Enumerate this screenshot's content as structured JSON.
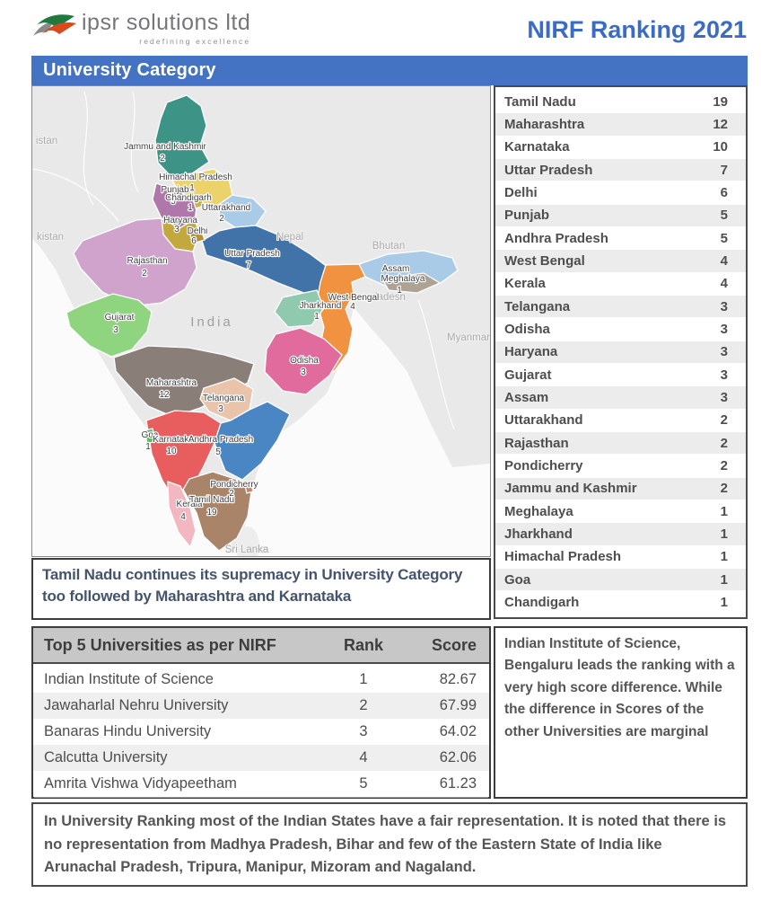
{
  "header": {
    "logo_text": "ipsr solutions ltd",
    "logo_tagline": "redefining excellence",
    "title": "NIRF Ranking 2021"
  },
  "banner": {
    "label": "University Category"
  },
  "colors": {
    "banner_bg": "#4573C4",
    "title_color": "#3B6BC5",
    "caption_text": "#44546A"
  },
  "state_list": [
    {
      "name": "Tamil Nadu",
      "count": "19"
    },
    {
      "name": "Maharashtra",
      "count": "12"
    },
    {
      "name": "Karnataka",
      "count": "10"
    },
    {
      "name": "Uttar Pradesh",
      "count": "7"
    },
    {
      "name": "Delhi",
      "count": "6"
    },
    {
      "name": "Punjab",
      "count": "5"
    },
    {
      "name": "Andhra Pradesh",
      "count": "5"
    },
    {
      "name": "West Bengal",
      "count": "4"
    },
    {
      "name": "Kerala",
      "count": "4"
    },
    {
      "name": "Telangana",
      "count": "3"
    },
    {
      "name": "Odisha",
      "count": "3"
    },
    {
      "name": "Haryana",
      "count": "3"
    },
    {
      "name": "Gujarat",
      "count": "3"
    },
    {
      "name": "Assam",
      "count": "3"
    },
    {
      "name": "Uttarakhand",
      "count": "2"
    },
    {
      "name": "Rajasthan",
      "count": "2"
    },
    {
      "name": "Pondicherry",
      "count": "2"
    },
    {
      "name": "Jammu and Kashmir",
      "count": "2"
    },
    {
      "name": "Meghalaya",
      "count": "1"
    },
    {
      "name": "Jharkhand",
      "count": "1"
    },
    {
      "name": "Himachal Pradesh",
      "count": "1"
    },
    {
      "name": "Goa",
      "count": "1"
    },
    {
      "name": "Chandigarh",
      "count": "1"
    }
  ],
  "map": {
    "countries": {
      "afghanistan_partial": "istan",
      "pakistan_partial": "kistan",
      "nepal": "Nepal",
      "bhutan": "Bhutan",
      "bangladesh_partial": "ladesh",
      "myanmar": "Myanmar",
      "india": "India",
      "sri_lanka": "Sri Lanka"
    },
    "states": [
      {
        "name": "Jammu and Kashmir",
        "count": "2",
        "color": "#3E9387"
      },
      {
        "name": "Himachal Pradesh",
        "count": "1",
        "color": "#EBD26A"
      },
      {
        "name": "Punjab",
        "count": "5",
        "color": "#B077AB"
      },
      {
        "name": "Chandigarh",
        "count": "1",
        "color": "#C9B44A"
      },
      {
        "name": "Uttarakhand",
        "count": "2",
        "color": "#A9CBE8"
      },
      {
        "name": "Haryana",
        "count": "3",
        "color": "#C2A83E"
      },
      {
        "name": "Delhi",
        "count": "6",
        "color": "#B89130"
      },
      {
        "name": "Rajasthan",
        "count": "2",
        "color": "#CFA3CC"
      },
      {
        "name": "Uttar Pradesh",
        "count": "7",
        "color": "#4173A9"
      },
      {
        "name": "Gujarat",
        "count": "3",
        "color": "#8FD47F"
      },
      {
        "name": "Assam",
        "count": "3",
        "color": "#A9CBE8"
      },
      {
        "name": "Meghalaya",
        "count": "1",
        "color": "#AEA295"
      },
      {
        "name": "West Bengal",
        "count": "4",
        "color": "#F0923F"
      },
      {
        "name": "Jharkhand",
        "count": "1",
        "color": "#8FC9AE"
      },
      {
        "name": "Odisha",
        "count": "3",
        "color": "#E06B9C"
      },
      {
        "name": "Maharashtra",
        "count": "12",
        "color": "#8A7E79"
      },
      {
        "name": "Telangana",
        "count": "3",
        "color": "#EAC3AB"
      },
      {
        "name": "Goa",
        "count": "1",
        "color": "#5CBB63"
      },
      {
        "name": "Karnataka",
        "count": "10",
        "color": "#E85E5E"
      },
      {
        "name": "Andhra Pradesh",
        "count": "5",
        "color": "#4A86C4"
      },
      {
        "name": "Pondicherry",
        "count": "2",
        "color": "#C9806B"
      },
      {
        "name": "Kerala",
        "count": "4",
        "color": "#F3B7C2"
      },
      {
        "name": "Tamil Nadu",
        "count": "19",
        "color": "#A98468"
      }
    ]
  },
  "caption": "Tamil Nadu continues its supremacy in University Category too followed by Maharashtra and Karnataka",
  "top5": {
    "title": "Top 5 Universities as per NIRF",
    "rank_header": "Rank",
    "score_header": "Score",
    "rows": [
      {
        "name": "Indian Institute of Science",
        "rank": "1",
        "score": "82.67"
      },
      {
        "name": "Jawaharlal Nehru University",
        "rank": "2",
        "score": "67.99"
      },
      {
        "name": "Banaras Hindu University",
        "rank": "3",
        "score": "64.02"
      },
      {
        "name": "Calcutta University",
        "rank": "4",
        "score": "62.06"
      },
      {
        "name": "Amrita Vishwa Vidyapeetham",
        "rank": "5",
        "score": "61.23"
      }
    ]
  },
  "side_note": "Indian Institute of Science, Bengaluru leads the ranking with a very high score difference. While the difference in Scores of the other Universities are marginal",
  "bottom_note": "In University Ranking most of the Indian States have a fair representation. It is noted that there is no representation from Madhya Pradesh, Bihar and few of the Eastern State of India like Arunachal Pradesh, Tripura, Manipur, Mizoram and Nagaland."
}
